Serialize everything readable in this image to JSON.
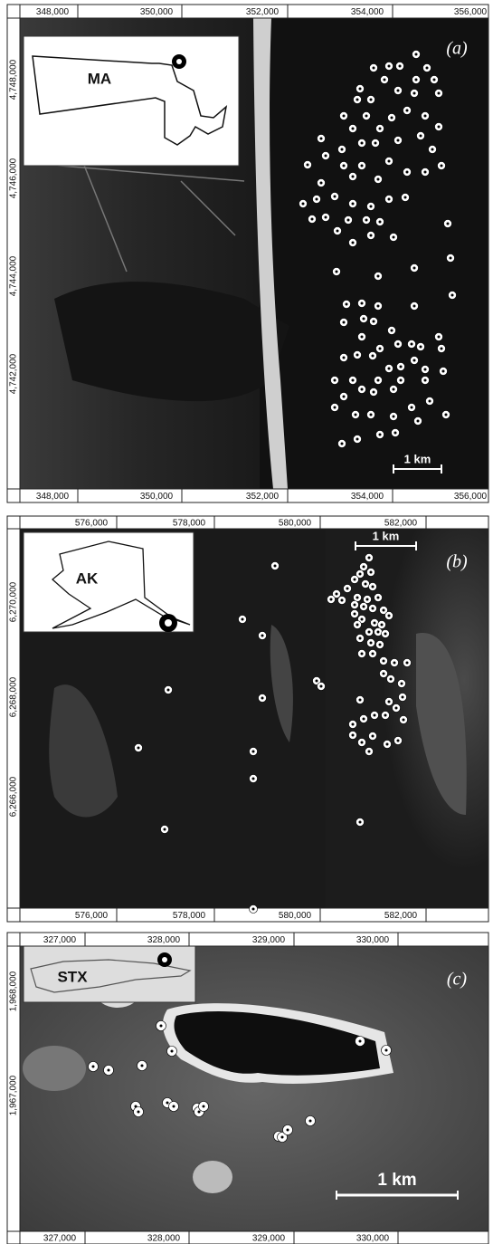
{
  "panels": [
    {
      "label": "(a)",
      "inset_label": "MA",
      "x_ticks": [
        "348,000",
        "350,000",
        "352,000",
        "354,000",
        "356,000"
      ],
      "y_ticks": [
        "4,748,000",
        "4,746,000",
        "4,744,000",
        "4,742,000"
      ],
      "scale_bar": "1 km"
    },
    {
      "label": "(b)",
      "inset_label": "AK",
      "x_ticks": [
        "576,000",
        "578,000",
        "580,000",
        "582,000"
      ],
      "y_ticks": [
        "6,270,000",
        "6,268,000",
        "6,266,000"
      ],
      "scale_bar": "1 km"
    },
    {
      "label": "(c)",
      "inset_label": "STX",
      "x_ticks": [
        "327,000",
        "328,000",
        "329,000",
        "330,000"
      ],
      "y_ticks": [
        "1,968,000",
        "1,967,000"
      ],
      "scale_bar": "1 km"
    }
  ]
}
